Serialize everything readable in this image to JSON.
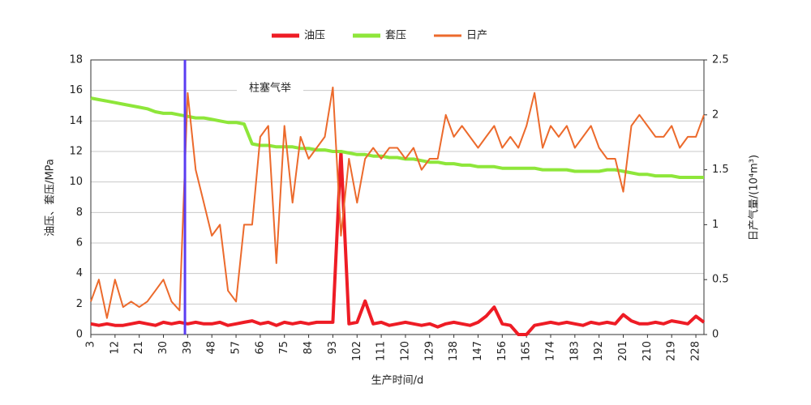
{
  "chart_data": {
    "type": "line",
    "xlabel": "生产时间/d",
    "ylabel": "油压、套压/MPa",
    "y2label": "日产气量/(10⁴m³)",
    "annotation": {
      "text": "柱塞气举",
      "x": 38,
      "color": "#5a3df2"
    },
    "xlim": [
      3,
      231
    ],
    "xticks": [
      3,
      12,
      21,
      30,
      39,
      48,
      57,
      66,
      75,
      84,
      93,
      102,
      111,
      120,
      129,
      138,
      147,
      156,
      165,
      174,
      183,
      192,
      201,
      210,
      219,
      228
    ],
    "ylim": [
      0,
      18
    ],
    "yticks": [
      0,
      2,
      4,
      6,
      8,
      10,
      12,
      14,
      16,
      18
    ],
    "y2lim": [
      0,
      2.5
    ],
    "y2ticks": [
      0,
      0.5,
      1,
      1.5,
      2,
      2.5
    ],
    "grid": true,
    "legend": "top",
    "x": [
      3,
      6,
      9,
      12,
      15,
      18,
      21,
      24,
      27,
      30,
      33,
      36,
      39,
      42,
      45,
      48,
      51,
      54,
      57,
      60,
      63,
      66,
      69,
      72,
      75,
      78,
      81,
      84,
      87,
      90,
      93,
      96,
      99,
      102,
      105,
      108,
      111,
      114,
      117,
      120,
      123,
      126,
      129,
      132,
      135,
      138,
      141,
      144,
      147,
      150,
      153,
      156,
      159,
      162,
      165,
      168,
      171,
      174,
      177,
      180,
      183,
      186,
      189,
      192,
      195,
      198,
      201,
      204,
      207,
      210,
      213,
      216,
      219,
      222,
      225,
      228,
      231
    ],
    "series": [
      {
        "name": "油压",
        "color": "#ee1c25",
        "width": 4,
        "values": [
          0.7,
          0.6,
          0.7,
          0.6,
          0.6,
          0.7,
          0.8,
          0.7,
          0.6,
          0.8,
          0.7,
          0.8,
          0.7,
          0.8,
          0.7,
          0.7,
          0.8,
          0.6,
          0.7,
          0.8,
          0.9,
          0.7,
          0.8,
          0.6,
          0.8,
          0.7,
          0.8,
          0.7,
          0.8,
          0.8,
          0.8,
          12.0,
          0.7,
          0.8,
          2.2,
          0.7,
          0.8,
          0.6,
          0.7,
          0.8,
          0.7,
          0.6,
          0.7,
          0.5,
          0.7,
          0.8,
          0.7,
          0.6,
          0.8,
          1.2,
          1.8,
          0.7,
          0.6,
          0.0,
          0.0,
          0.6,
          0.7,
          0.8,
          0.7,
          0.8,
          0.7,
          0.6,
          0.8,
          0.7,
          0.8,
          0.7,
          1.3,
          0.9,
          0.7,
          0.7,
          0.8,
          0.7,
          0.9,
          0.8,
          0.7,
          1.2,
          0.8
        ]
      },
      {
        "name": "套压",
        "color": "#8ee63a",
        "width": 4,
        "values": [
          15.5,
          15.4,
          15.3,
          15.2,
          15.1,
          15.0,
          14.9,
          14.8,
          14.6,
          14.5,
          14.5,
          14.4,
          14.3,
          14.2,
          14.2,
          14.1,
          14.0,
          13.9,
          13.9,
          13.8,
          12.5,
          12.4,
          12.4,
          12.3,
          12.3,
          12.3,
          12.2,
          12.2,
          12.1,
          12.1,
          12.0,
          12.0,
          11.9,
          11.8,
          11.8,
          11.7,
          11.7,
          11.6,
          11.6,
          11.5,
          11.5,
          11.4,
          11.3,
          11.3,
          11.2,
          11.2,
          11.1,
          11.1,
          11.0,
          11.0,
          11.0,
          10.9,
          10.9,
          10.9,
          10.9,
          10.9,
          10.8,
          10.8,
          10.8,
          10.8,
          10.7,
          10.7,
          10.7,
          10.7,
          10.8,
          10.8,
          10.7,
          10.6,
          10.5,
          10.5,
          10.4,
          10.4,
          10.4,
          10.3,
          10.3,
          10.3,
          10.3
        ]
      },
      {
        "name": "日产",
        "color": "#ec6a2c",
        "width": 2,
        "axis": "y2",
        "values": [
          0.3,
          0.5,
          0.15,
          0.5,
          0.25,
          0.3,
          0.25,
          0.3,
          0.4,
          0.5,
          0.3,
          0.22,
          2.2,
          1.5,
          1.2,
          0.9,
          1.0,
          0.4,
          0.3,
          1.0,
          1.0,
          1.8,
          1.9,
          0.65,
          1.9,
          1.2,
          1.8,
          1.6,
          1.7,
          1.8,
          2.25,
          0.9,
          1.6,
          1.2,
          1.6,
          1.7,
          1.6,
          1.7,
          1.7,
          1.6,
          1.7,
          1.5,
          1.6,
          1.6,
          2.0,
          1.8,
          1.9,
          1.8,
          1.7,
          1.8,
          1.9,
          1.7,
          1.8,
          1.7,
          1.9,
          2.2,
          1.7,
          1.9,
          1.8,
          1.9,
          1.7,
          1.8,
          1.9,
          1.7,
          1.6,
          1.6,
          1.3,
          1.9,
          2.0,
          1.9,
          1.8,
          1.8,
          1.9,
          1.7,
          1.8,
          1.8,
          2.0
        ]
      }
    ]
  }
}
